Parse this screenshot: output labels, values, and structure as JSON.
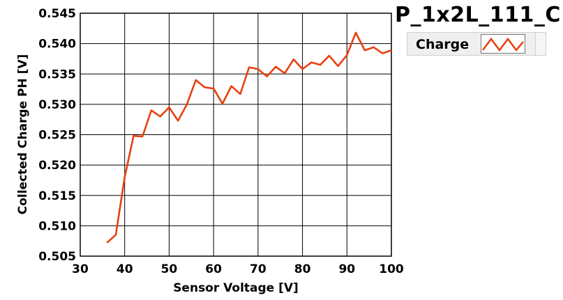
{
  "chart_data": {
    "type": "line",
    "title": "P_1x2L_111_C",
    "xlabel": "Sensor Voltage [V]",
    "ylabel": "Collected Charge PH [V]",
    "xlim": [
      30,
      100
    ],
    "ylim": [
      0.505,
      0.545
    ],
    "xticks": [
      30,
      40,
      50,
      60,
      70,
      80,
      90,
      100
    ],
    "yticks": [
      0.505,
      0.51,
      0.515,
      0.52,
      0.525,
      0.53,
      0.535,
      0.54,
      0.545
    ],
    "ytick_labels": [
      "0.505",
      "0.510",
      "0.515",
      "0.520",
      "0.525",
      "0.530",
      "0.535",
      "0.540",
      "0.545"
    ],
    "grid": true,
    "legend_position": "top-right",
    "series": [
      {
        "name": "Charge",
        "color": "#e8400e",
        "x": [
          36,
          38,
          40,
          42,
          44,
          46,
          48,
          50,
          52,
          54,
          56,
          58,
          60,
          62,
          64,
          66,
          68,
          70,
          72,
          74,
          76,
          78,
          80,
          82,
          84,
          86,
          88,
          90,
          92,
          94,
          96,
          98,
          100
        ],
        "y": [
          0.5072,
          0.5085,
          0.518,
          0.5248,
          0.5247,
          0.529,
          0.528,
          0.5295,
          0.5273,
          0.53,
          0.534,
          0.5328,
          0.5326,
          0.5301,
          0.533,
          0.5317,
          0.5361,
          0.5358,
          0.5346,
          0.5362,
          0.5351,
          0.5374,
          0.5358,
          0.5369,
          0.5365,
          0.538,
          0.5363,
          0.5381,
          0.5418,
          0.5389,
          0.5394,
          0.5384,
          0.5389
        ]
      }
    ]
  }
}
